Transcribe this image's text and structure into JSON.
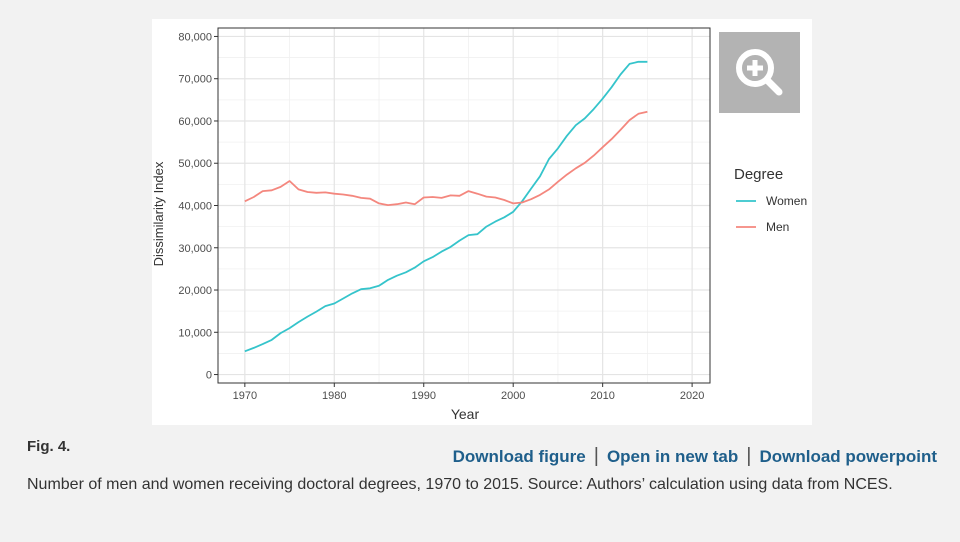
{
  "figure": {
    "label": "Fig. 4.",
    "caption": "Number of men and women receiving doctoral degrees, 1970 to 2015. Source: Authors’ calculation using data from NCES.",
    "links": {
      "download_figure": "Download figure",
      "open_new_tab": "Open in new tab",
      "download_powerpoint": "Download powerpoint"
    },
    "zoom_icon": "zoom-in-icon"
  },
  "chart_data": {
    "type": "line",
    "title": "",
    "xlabel": "Year",
    "ylabel": "Dissimilarity Index",
    "xlim": [
      1967,
      2022
    ],
    "ylim": [
      -2000,
      82000
    ],
    "x_ticks": [
      1970,
      1980,
      1990,
      2000,
      2010,
      2020
    ],
    "y_ticks": [
      0,
      10000,
      20000,
      30000,
      40000,
      50000,
      60000,
      70000,
      80000
    ],
    "y_tick_labels": [
      "0",
      "10,000",
      "20,000",
      "30,000",
      "40,000",
      "50,000",
      "60,000",
      "70,000",
      "80,000"
    ],
    "grid": true,
    "legend_title": "Degree",
    "legend_position": "right",
    "series": [
      {
        "name": "Women",
        "color": "#35c4cb",
        "x": [
          1970,
          1971,
          1972,
          1973,
          1974,
          1975,
          1976,
          1977,
          1978,
          1979,
          1980,
          1981,
          1982,
          1983,
          1984,
          1985,
          1986,
          1987,
          1988,
          1989,
          1990,
          1991,
          1992,
          1993,
          1994,
          1995,
          1996,
          1997,
          1998,
          1999,
          2000,
          2001,
          2002,
          2003,
          2004,
          2005,
          2006,
          2007,
          2008,
          2009,
          2010,
          2011,
          2012,
          2013,
          2014,
          2015
        ],
        "y": [
          5500,
          6300,
          7200,
          8200,
          9800,
          11000,
          12400,
          13700,
          14900,
          16200,
          16800,
          18000,
          19200,
          20200,
          20400,
          21000,
          22400,
          23400,
          24200,
          25300,
          26800,
          27800,
          29100,
          30200,
          31700,
          33000,
          33200,
          35000,
          36200,
          37200,
          38500,
          41000,
          44000,
          46900,
          51000,
          53500,
          56500,
          59000,
          60600,
          62800,
          65300,
          68000,
          71000,
          73500,
          74000,
          74000
        ]
      },
      {
        "name": "Men",
        "color": "#f4877e",
        "x": [
          1970,
          1971,
          1972,
          1973,
          1974,
          1975,
          1976,
          1977,
          1978,
          1979,
          1980,
          1981,
          1982,
          1983,
          1984,
          1985,
          1986,
          1987,
          1988,
          1989,
          1990,
          1991,
          1992,
          1993,
          1994,
          1995,
          1996,
          1997,
          1998,
          1999,
          2000,
          2001,
          2002,
          2003,
          2004,
          2005,
          2006,
          2007,
          2008,
          2009,
          2010,
          2011,
          2012,
          2013,
          2014,
          2015
        ],
        "y": [
          41000,
          42000,
          43400,
          43600,
          44400,
          45800,
          43800,
          43200,
          43000,
          43100,
          42800,
          42600,
          42300,
          41800,
          41600,
          40500,
          40100,
          40300,
          40700,
          40300,
          41900,
          42000,
          41800,
          42400,
          42300,
          43400,
          42800,
          42100,
          41900,
          41300,
          40500,
          40700,
          41500,
          42500,
          43800,
          45600,
          47300,
          48800,
          50100,
          51800,
          53800,
          55700,
          57900,
          60200,
          61700,
          62200
        ]
      }
    ]
  }
}
